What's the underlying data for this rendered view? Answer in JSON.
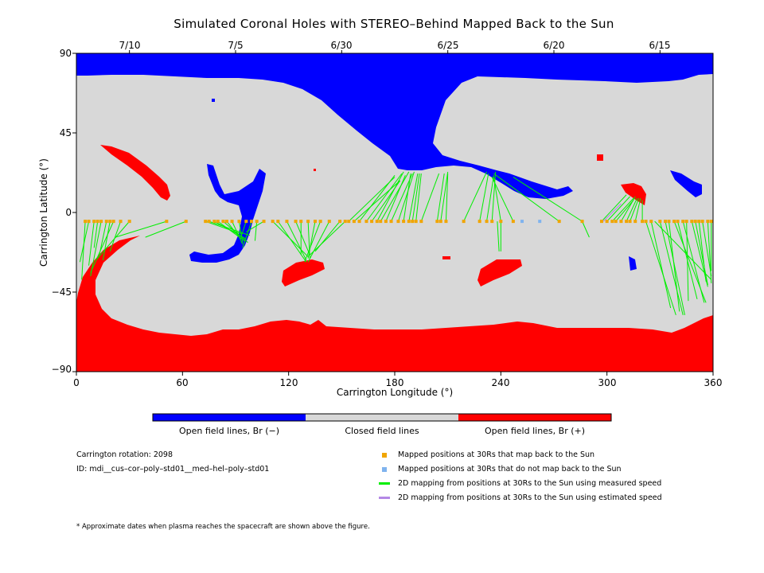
{
  "title": "Simulated Coronal Holes with STEREO–Behind Mapped Back to the Sun",
  "chart_data": {
    "type": "map",
    "xlabel": "Carrington Longitude (°)",
    "ylabel": "Carrington Latitude (°)",
    "xlim": [
      0,
      360
    ],
    "ylim": [
      -90,
      90
    ],
    "x_ticks": [
      "0",
      "60",
      "120",
      "180",
      "240",
      "300",
      "360"
    ],
    "y_ticks": [
      "90",
      "45",
      "0",
      "−45",
      "−90"
    ],
    "top_dates": [
      {
        "label": "7/10",
        "lon": 30
      },
      {
        "label": "7/5",
        "lon": 90
      },
      {
        "label": "6/30",
        "lon": 150
      },
      {
        "label": "6/25",
        "lon": 210
      },
      {
        "label": "6/20",
        "lon": 270
      },
      {
        "label": "6/15",
        "lon": 330
      }
    ],
    "colors": {
      "open_negative": "#0000ff",
      "closed": "#d8d8d8",
      "open_positive": "#ff0000",
      "mapped": "#f0a500",
      "unmapped": "#7fb3ee",
      "measured": "#00ee00",
      "estimated": "#b488e6"
    },
    "mapped_points_lat": -5,
    "mapped_points_lon": [
      5,
      7,
      10,
      12,
      14,
      17,
      19,
      21,
      25,
      30,
      51,
      62,
      73,
      75,
      78,
      80,
      83,
      85,
      88,
      92,
      96,
      99,
      102,
      106,
      111,
      114,
      119,
      124,
      127,
      131,
      135,
      138,
      143,
      149,
      152,
      154,
      157,
      160,
      164,
      167,
      170,
      172,
      175,
      178,
      182,
      185,
      188,
      190,
      192,
      195,
      204,
      206,
      209,
      219,
      228,
      232,
      235,
      240,
      247,
      273,
      286,
      297,
      300,
      303,
      305,
      308,
      311,
      313,
      316,
      320,
      322,
      325,
      330,
      333,
      335,
      338,
      340,
      343,
      345,
      348,
      350,
      352,
      354,
      357,
      359
    ],
    "unmapped_points_lon": [
      252,
      262
    ],
    "measured_mappings": [
      [
        5,
        -5,
        3,
        -38
      ],
      [
        7,
        -5,
        2,
        -28
      ],
      [
        10,
        -5,
        7,
        -30
      ],
      [
        12,
        -5,
        10,
        -20
      ],
      [
        14,
        -5,
        8,
        -36
      ],
      [
        17,
        -5,
        13,
        -24
      ],
      [
        19,
        -5,
        15,
        -27
      ],
      [
        21,
        -5,
        8,
        -34
      ],
      [
        25,
        -5,
        19,
        -22
      ],
      [
        30,
        -5,
        11,
        -27
      ],
      [
        51,
        -5,
        22,
        -14
      ],
      [
        62,
        -5,
        39,
        -14
      ],
      [
        73,
        -5,
        93,
        -12
      ],
      [
        75,
        -5,
        98,
        -13
      ],
      [
        78,
        -5,
        96,
        -15
      ],
      [
        80,
        -5,
        95,
        -16
      ],
      [
        83,
        -5,
        97,
        -17
      ],
      [
        85,
        -5,
        93,
        -15
      ],
      [
        88,
        -5,
        94,
        -18
      ],
      [
        92,
        -5,
        94,
        -17
      ],
      [
        96,
        -5,
        93,
        -14
      ],
      [
        99,
        -5,
        94,
        -20
      ],
      [
        102,
        -5,
        101,
        -16
      ],
      [
        106,
        -5,
        96,
        -11
      ],
      [
        111,
        -5,
        131,
        -25
      ],
      [
        114,
        -5,
        130,
        -28
      ],
      [
        119,
        -5,
        130,
        -27
      ],
      [
        124,
        -5,
        132,
        -24
      ],
      [
        127,
        -5,
        127,
        -24
      ],
      [
        131,
        -5,
        132,
        -26
      ],
      [
        135,
        -5,
        131,
        -26
      ],
      [
        138,
        -5,
        129,
        -28
      ],
      [
        143,
        -5,
        131,
        -28
      ],
      [
        149,
        -5,
        135,
        -22
      ],
      [
        152,
        -5,
        132,
        -24
      ],
      [
        154,
        -5,
        180,
        20
      ],
      [
        157,
        -5,
        183,
        18
      ],
      [
        160,
        -5,
        180,
        21
      ],
      [
        164,
        -5,
        184,
        22
      ],
      [
        167,
        -5,
        183,
        18
      ],
      [
        170,
        -5,
        185,
        23
      ],
      [
        172,
        -5,
        188,
        23
      ],
      [
        175,
        -5,
        186,
        21
      ],
      [
        178,
        -5,
        190,
        22
      ],
      [
        182,
        -5,
        191,
        23
      ],
      [
        185,
        -5,
        189,
        22
      ],
      [
        188,
        -5,
        193,
        22
      ],
      [
        190,
        -5,
        194,
        22
      ],
      [
        192,
        -5,
        195,
        22
      ],
      [
        195,
        -5,
        205,
        22
      ],
      [
        204,
        -5,
        208,
        22
      ],
      [
        206,
        -5,
        210,
        23
      ],
      [
        209,
        -5,
        210,
        22
      ],
      [
        219,
        -5,
        232,
        23
      ],
      [
        228,
        -5,
        233,
        22
      ],
      [
        232,
        -5,
        236,
        21
      ],
      [
        235,
        -5,
        237,
        23
      ],
      [
        240,
        -5,
        236,
        20
      ],
      [
        247,
        -5,
        235,
        20
      ],
      [
        273,
        -5,
        236,
        22
      ],
      [
        286,
        -5,
        247,
        20
      ],
      [
        297,
        -5,
        311,
        10
      ],
      [
        300,
        -5,
        313,
        9
      ],
      [
        303,
        -5,
        315,
        8
      ],
      [
        305,
        -5,
        315,
        7
      ],
      [
        308,
        -5,
        316,
        9
      ],
      [
        311,
        -5,
        317,
        8
      ],
      [
        313,
        -5,
        318,
        8
      ],
      [
        316,
        -5,
        319,
        8
      ],
      [
        320,
        -5,
        320,
        7
      ],
      [
        286,
        -5,
        290,
        -14
      ],
      [
        238,
        -5,
        239,
        -22
      ],
      [
        240,
        -5,
        240,
        -22
      ],
      [
        322,
        -5,
        339,
        -58
      ],
      [
        325,
        -5,
        336,
        -54
      ],
      [
        330,
        -5,
        343,
        -58
      ],
      [
        333,
        -5,
        344,
        -58
      ],
      [
        335,
        -5,
        341,
        -56
      ],
      [
        338,
        -5,
        356,
        -51
      ],
      [
        340,
        -5,
        351,
        -49
      ],
      [
        343,
        -5,
        355,
        -51
      ],
      [
        345,
        -5,
        346,
        -50
      ],
      [
        348,
        -5,
        357,
        -42
      ],
      [
        350,
        -5,
        357,
        -41
      ],
      [
        352,
        -5,
        356,
        -39
      ],
      [
        354,
        -5,
        359,
        -36
      ],
      [
        357,
        -5,
        359,
        -40
      ],
      [
        359,
        -5,
        359,
        -33
      ],
      [
        327,
        -5,
        359,
        -38
      ]
    ],
    "estimated_mappings": [
      [
        298,
        -5,
        308,
        5
      ]
    ]
  },
  "colorbar": {
    "labels": [
      "Open field lines, Br (−)",
      "Closed field lines",
      "Open field lines, Br (+)"
    ]
  },
  "info": {
    "rotation": "Carrington rotation: 2098",
    "id": "ID: mdi__cus–cor–poly–std01__med–hel–poly–std01"
  },
  "legend": [
    {
      "label": "Mapped positions at 30Rs that map back to the Sun"
    },
    {
      "label": "Mapped positions at 30Rs that do not map back to the Sun"
    },
    {
      "label": "2D mapping from positions at 30Rs to the Sun using measured speed"
    },
    {
      "label": "2D mapping from positions at 30Rs to the Sun using estimated speed"
    }
  ],
  "footnote": "* Approximate dates when plasma reaches the spacecraft are shown above the figure."
}
